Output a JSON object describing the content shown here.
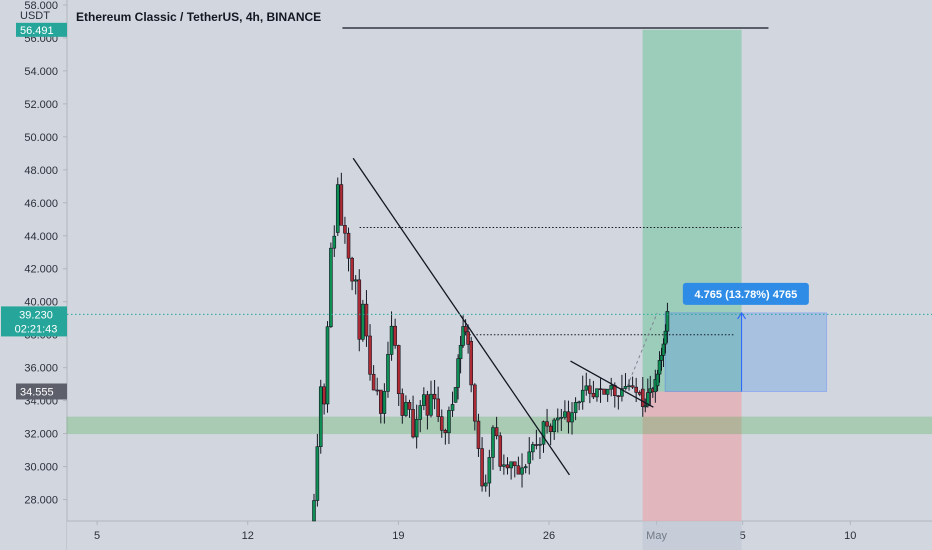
{
  "chart_data": {
    "type": "candlestick",
    "title": "Ethereum Classic / TetherUS, 4h, BINANCE",
    "y_unit": "USDT",
    "ylim": [
      26.7,
      58.3
    ],
    "y_ticks": [
      "28.000",
      "30.000",
      "32.000",
      "34.000",
      "36.000",
      "38.000",
      "40.000",
      "42.000",
      "44.000",
      "46.000",
      "48.000",
      "50.000",
      "52.000",
      "54.000",
      "56.000",
      "58.000"
    ],
    "x_ticks": [
      {
        "label": "5",
        "day": 5
      },
      {
        "label": "12",
        "day": 12
      },
      {
        "label": "19",
        "day": 19
      },
      {
        "label": "26",
        "day": 26
      },
      {
        "label": "May",
        "day": 31
      },
      {
        "label": "5",
        "day": 35
      },
      {
        "label": "10",
        "day": 40
      }
    ],
    "xlim": [
      3.6,
      43.8
    ],
    "current_price": {
      "label": "39.230",
      "countdown": "02:21:43",
      "value": 39.23,
      "color": "#26a69a"
    },
    "stop_label": {
      "label": "34.555",
      "value": 34.555
    },
    "target_label": {
      "label": "56.491",
      "value": 56.491
    },
    "measure_label": "4.765 (13.78%) 4765",
    "long_position": {
      "day_start": 30.35,
      "day_end": 34.95,
      "entry": 34.555,
      "target": 56.491,
      "stop": 26.7
    },
    "measure_box": {
      "day_start": 31.4,
      "day_end": 38.9,
      "low": 34.555,
      "high": 39.32
    },
    "horizontal_lines": [
      {
        "kind": "solid",
        "day_start": 16.4,
        "day_end": 36.2,
        "value": 56.6
      },
      {
        "kind": "dotted",
        "day_start": 17.2,
        "day_end": 34.95,
        "value": 44.5
      },
      {
        "kind": "dotted",
        "day_start": 22.3,
        "day_end": 34.6,
        "value": 38.0
      }
    ],
    "support_zone": {
      "low": 32.0,
      "high": 33.0,
      "color": "#4caf50"
    },
    "trendlines": [
      {
        "day1": 16.9,
        "price1": 48.7,
        "day2": 26.95,
        "price2": 29.5
      },
      {
        "day1": 27.0,
        "price1": 36.4,
        "day2": 30.85,
        "price2": 33.6
      }
    ],
    "segments": [
      {
        "day_start": 15.0,
        "day_end": 16.1,
        "base": 26.7,
        "dir": 1,
        "points": [
          26.7,
          29.0,
          35.0,
          33.8,
          42.5,
          44.2
        ]
      },
      {
        "day_start": 16.1,
        "day_end": 18.6,
        "base": 44.2,
        "dir": -1,
        "points": [
          44.2,
          47.5,
          43.8,
          44.8,
          41.0,
          41.7,
          38.0,
          39.6,
          37.2,
          34.2,
          35.4,
          32.6,
          33.8,
          36.8
        ]
      },
      {
        "day_start": 18.6,
        "day_end": 21.6,
        "base": 36.8,
        "dir": -1,
        "points": [
          36.8,
          38.7,
          35.1,
          33.2,
          34.5,
          31.7,
          32.7,
          34.6,
          33.0,
          35.0,
          33.4,
          31.6,
          32.8,
          33.9
        ]
      },
      {
        "day_start": 21.6,
        "day_end": 22.3,
        "base": 33.9,
        "dir": 1,
        "points": [
          33.9,
          36.5,
          38.5,
          37.6
        ]
      },
      {
        "day_start": 22.3,
        "day_end": 25.0,
        "base": 37.6,
        "dir": -1,
        "points": [
          37.6,
          33.8,
          31.0,
          28.4,
          30.5,
          32.9,
          30.3,
          29.7,
          30.2,
          29.8,
          29.4,
          30.2
        ]
      },
      {
        "day_start": 25.0,
        "day_end": 30.3,
        "base": 30.2,
        "dir": 1,
        "points": [
          30.2,
          31.4,
          31.2,
          32.5,
          32.1,
          32.9,
          33.4,
          32.8,
          33.9,
          34.2,
          34.6,
          33.9,
          34.5,
          34.1,
          35.0,
          34.4,
          34.8,
          35.1,
          34.3,
          34.7
        ]
      },
      {
        "day_start": 30.3,
        "day_end": 31.0,
        "base": 34.7,
        "dir": 1,
        "points": [
          34.7,
          33.8,
          34.2,
          34.6,
          34.4,
          34.9
        ]
      },
      {
        "day_start": 31.0,
        "day_end": 31.55,
        "base": 34.9,
        "dir": 1,
        "points": [
          34.9,
          35.6,
          36.3,
          37.2,
          38.4,
          39.23
        ]
      }
    ]
  }
}
